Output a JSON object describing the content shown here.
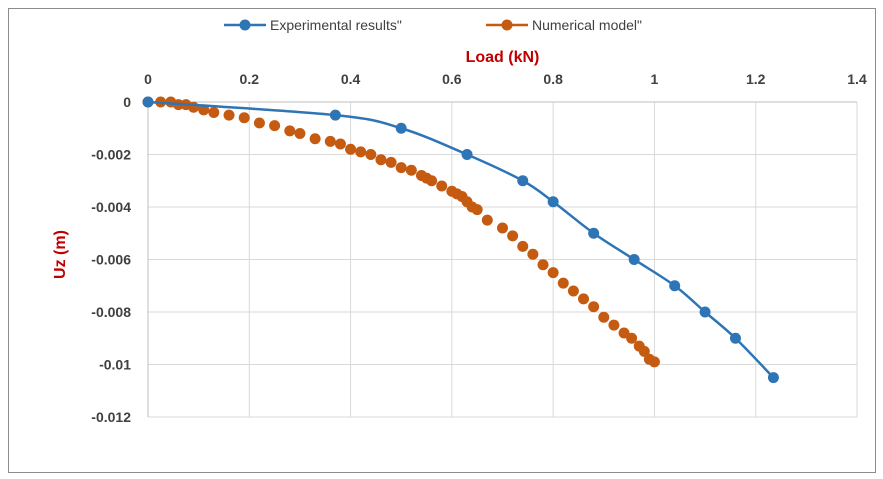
{
  "chart_data": {
    "type": "scatter",
    "title": "",
    "xlabel": "Load (kN)",
    "ylabel": "Uz (m)",
    "xlim": [
      0,
      1.4
    ],
    "ylim": [
      -0.012,
      0
    ],
    "x_ticks": [
      0,
      0.2,
      0.4,
      0.6,
      0.8,
      1,
      1.2,
      1.4
    ],
    "x_tick_labels": [
      "0",
      "0.2",
      "0.4",
      "0.6",
      "0.8",
      "1",
      "1.2",
      "1.4"
    ],
    "y_ticks": [
      0,
      -0.002,
      -0.004,
      -0.006,
      -0.008,
      -0.01,
      -0.012
    ],
    "y_tick_labels": [
      "0",
      "-0.002",
      "-0.004",
      "-0.006",
      "-0.008",
      "-0.01",
      "-0.012"
    ],
    "x_axis_position": "top",
    "grid": true,
    "legend_position": "top",
    "series": [
      {
        "name": "Experimental results\"",
        "color": "#2e75b6",
        "line": "smooth",
        "x": [
          0,
          0.37,
          0.5,
          0.63,
          0.74,
          0.8,
          0.88,
          0.96,
          1.04,
          1.1,
          1.16,
          1.235
        ],
        "y": [
          0,
          -0.0005,
          -0.001,
          -0.002,
          -0.003,
          -0.0038,
          -0.005,
          -0.006,
          -0.007,
          -0.008,
          -0.009,
          -0.0105
        ]
      },
      {
        "name": "Numerical model\"",
        "color": "#c55a11",
        "line": "none",
        "x": [
          0,
          0.025,
          0.045,
          0.06,
          0.075,
          0.09,
          0.11,
          0.13,
          0.16,
          0.19,
          0.22,
          0.25,
          0.28,
          0.3,
          0.33,
          0.36,
          0.38,
          0.4,
          0.42,
          0.44,
          0.46,
          0.48,
          0.5,
          0.52,
          0.54,
          0.55,
          0.56,
          0.58,
          0.6,
          0.61,
          0.62,
          0.63,
          0.64,
          0.65,
          0.67,
          0.7,
          0.72,
          0.74,
          0.76,
          0.78,
          0.8,
          0.82,
          0.84,
          0.86,
          0.88,
          0.9,
          0.92,
          0.94,
          0.955,
          0.97,
          0.98,
          0.99,
          1.0
        ],
        "y": [
          0,
          0,
          0,
          -0.0001,
          -0.0001,
          -0.0002,
          -0.0003,
          -0.0004,
          -0.0005,
          -0.0006,
          -0.0008,
          -0.0009,
          -0.0011,
          -0.0012,
          -0.0014,
          -0.0015,
          -0.0016,
          -0.0018,
          -0.0019,
          -0.002,
          -0.0022,
          -0.0023,
          -0.0025,
          -0.0026,
          -0.0028,
          -0.0029,
          -0.003,
          -0.0032,
          -0.0034,
          -0.0035,
          -0.0036,
          -0.0038,
          -0.004,
          -0.0041,
          -0.0045,
          -0.0048,
          -0.0051,
          -0.0055,
          -0.0058,
          -0.0062,
          -0.0065,
          -0.0069,
          -0.0072,
          -0.0075,
          -0.0078,
          -0.0082,
          -0.0085,
          -0.0088,
          -0.009,
          -0.0093,
          -0.0095,
          -0.0098,
          -0.0099
        ]
      }
    ]
  }
}
